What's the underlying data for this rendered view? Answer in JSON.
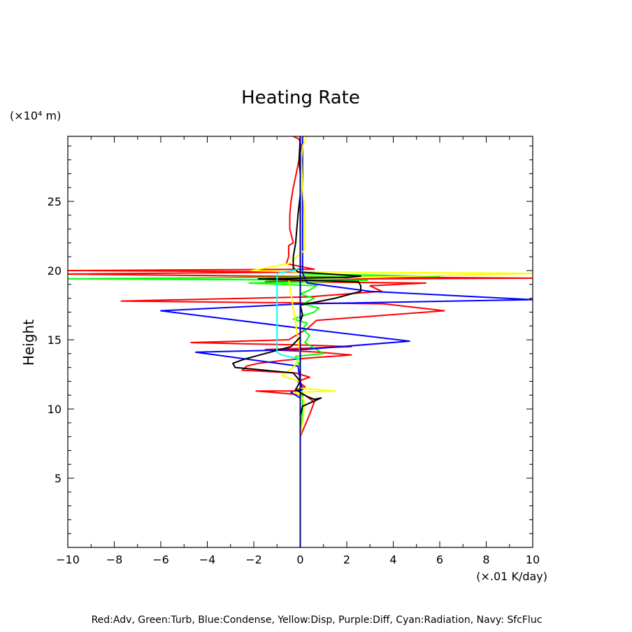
{
  "chart_data": {
    "type": "line",
    "title": "Heating Rate",
    "ylabel": "Height",
    "yunit": "(×10⁴ m)",
    "xunit": "(×.01 K/day)",
    "xlim": [
      -10,
      10
    ],
    "ylim": [
      0,
      29.7
    ],
    "xticks": [
      -10,
      -8,
      -6,
      -4,
      -2,
      0,
      2,
      4,
      6,
      8,
      10
    ],
    "yticks": [
      5,
      10,
      15,
      20,
      25
    ],
    "footer": "Red:Adv, Green:Turb, Blue:Condense, Yellow:Disp, Purple:Diff, Cyan:Radiation, Navy: SfcFluc",
    "series": [
      {
        "name": "Red:Adv",
        "color": "#ff0000",
        "points": [
          [
            0,
            0
          ],
          [
            0,
            8.0
          ],
          [
            0.4,
            9.6
          ],
          [
            0.6,
            10.5
          ],
          [
            0.2,
            11.0
          ],
          [
            -1.9,
            11.3
          ],
          [
            -0.3,
            11.3
          ],
          [
            0.2,
            11.6
          ],
          [
            -0.1,
            12.0
          ],
          [
            0.4,
            12.3
          ],
          [
            -0.2,
            12.6
          ],
          [
            -2.5,
            12.8
          ],
          [
            -2.3,
            13.1
          ],
          [
            -1.8,
            13.3
          ],
          [
            -0.8,
            13.5
          ],
          [
            0.5,
            13.7
          ],
          [
            2.2,
            13.9
          ],
          [
            0.8,
            14.1
          ],
          [
            -1.5,
            14.3
          ],
          [
            2.2,
            14.5
          ],
          [
            0.5,
            14.6
          ],
          [
            -4.7,
            14.8
          ],
          [
            -0.5,
            15.0
          ],
          [
            0.3,
            15.8
          ],
          [
            0.7,
            16.4
          ],
          [
            6.2,
            17.1
          ],
          [
            3.6,
            17.6
          ],
          [
            -7.7,
            17.8
          ],
          [
            0.3,
            18.1
          ],
          [
            3.5,
            18.5
          ],
          [
            3.0,
            18.9
          ],
          [
            5.4,
            19.1
          ],
          [
            -1.5,
            19.2
          ],
          [
            2.7,
            19.4
          ],
          [
            10.0,
            19.45
          ],
          [
            -1.7,
            19.6
          ],
          [
            -10.0,
            19.75
          ],
          [
            0.6,
            19.9
          ],
          [
            -10.0,
            20.0
          ],
          [
            0.6,
            20.1
          ],
          [
            -0.6,
            20.5
          ],
          [
            -0.5,
            21.0
          ],
          [
            -0.5,
            21.8
          ],
          [
            -0.3,
            22.0
          ],
          [
            -0.45,
            23.0
          ],
          [
            -0.45,
            24.0
          ],
          [
            -0.4,
            25.0
          ],
          [
            -0.3,
            26.0
          ],
          [
            -0.05,
            28.0
          ],
          [
            0.05,
            29.0
          ],
          [
            -0.05,
            29.5
          ],
          [
            -0.3,
            29.7
          ]
        ]
      },
      {
        "name": "Green:Turb",
        "color": "#00ff00",
        "points": [
          [
            0,
            8.0
          ],
          [
            0.05,
            9.0
          ],
          [
            0.1,
            10.0
          ],
          [
            0.1,
            11.0
          ],
          [
            0,
            12.0
          ],
          [
            0,
            13.0
          ],
          [
            -0.2,
            13.8
          ],
          [
            1.0,
            14.0
          ],
          [
            0.6,
            14.4
          ],
          [
            0.2,
            14.8
          ],
          [
            0.4,
            15.3
          ],
          [
            0.1,
            15.8
          ],
          [
            0.3,
            16.2
          ],
          [
            -0.3,
            16.5
          ],
          [
            0.6,
            17.0
          ],
          [
            0.8,
            17.3
          ],
          [
            0.1,
            17.6
          ],
          [
            0.6,
            18.0
          ],
          [
            0,
            18.3
          ],
          [
            0.4,
            18.6
          ],
          [
            0.7,
            18.9
          ],
          [
            -2.2,
            19.1
          ],
          [
            0.8,
            19.2
          ],
          [
            2.9,
            19.3
          ],
          [
            -10.0,
            19.4
          ],
          [
            6.0,
            19.6
          ],
          [
            0.2,
            19.75
          ],
          [
            0,
            19.9
          ]
        ]
      },
      {
        "name": "Blue:Condense",
        "color": "#0000ff",
        "points": [
          [
            0,
            0
          ],
          [
            0,
            10.8
          ],
          [
            -0.4,
            11.2
          ],
          [
            0.1,
            11.4
          ],
          [
            0,
            12.0
          ],
          [
            -0.1,
            13.1
          ],
          [
            -4.5,
            14.1
          ],
          [
            0.2,
            14.3
          ],
          [
            4.7,
            14.9
          ],
          [
            0.2,
            15.8
          ],
          [
            -6.0,
            17.1
          ],
          [
            0.1,
            17.6
          ],
          [
            10.0,
            17.9
          ],
          [
            3.0,
            18.5
          ],
          [
            0.3,
            19.1
          ],
          [
            0.1,
            19.8
          ],
          [
            0.1,
            20.3
          ],
          [
            0.1,
            29.7
          ]
        ]
      },
      {
        "name": "Yellow:Disp",
        "color": "#ffff00",
        "points": [
          [
            0,
            8.0
          ],
          [
            0.1,
            9.0
          ],
          [
            0.2,
            10.5
          ],
          [
            0,
            11.0
          ],
          [
            -0.3,
            11.2
          ],
          [
            1.5,
            11.3
          ],
          [
            0,
            11.5
          ],
          [
            0,
            12.0
          ],
          [
            -0.8,
            12.4
          ],
          [
            -0.3,
            13.0
          ],
          [
            -0.1,
            13.5
          ],
          [
            0,
            14.0
          ],
          [
            -0.5,
            19.4
          ],
          [
            10.0,
            19.8
          ],
          [
            0.2,
            19.9
          ],
          [
            -2.1,
            20.0
          ],
          [
            -0.5,
            20.5
          ],
          [
            0.2,
            21.5
          ],
          [
            0.2,
            22.5
          ],
          [
            0.2,
            23.5
          ],
          [
            0.15,
            25.0
          ],
          [
            0.1,
            26.0
          ],
          [
            0.05,
            28.0
          ],
          [
            0.1,
            29.0
          ],
          [
            0.3,
            29.7
          ]
        ]
      },
      {
        "name": "Black",
        "color": "#000000",
        "points": [
          [
            0,
            8.0
          ],
          [
            0,
            9.5
          ],
          [
            0.1,
            10.2
          ],
          [
            0.9,
            10.8
          ],
          [
            0.6,
            10.7
          ],
          [
            0.3,
            10.9
          ],
          [
            -0.2,
            11.4
          ],
          [
            0,
            12.0
          ],
          [
            -0.3,
            12.6
          ],
          [
            -2.8,
            13.0
          ],
          [
            -2.9,
            13.3
          ],
          [
            -2.4,
            13.6
          ],
          [
            -1.3,
            14.1
          ],
          [
            -0.4,
            14.5
          ],
          [
            0,
            15.2
          ],
          [
            0,
            15.8
          ],
          [
            0,
            16.3
          ],
          [
            0.1,
            16.8
          ],
          [
            0,
            17.5
          ],
          [
            1.5,
            18.0
          ],
          [
            2.6,
            18.5
          ],
          [
            2.6,
            18.9
          ],
          [
            2.5,
            19.2
          ],
          [
            -1.8,
            19.4
          ],
          [
            2.0,
            19.5
          ],
          [
            2.6,
            19.6
          ],
          [
            -0.1,
            19.9
          ],
          [
            -0.3,
            20.2
          ],
          [
            -0.3,
            21.0
          ],
          [
            -0.2,
            22.0
          ],
          [
            -0.1,
            24.0
          ],
          [
            0,
            25.5
          ],
          [
            0,
            27.0
          ],
          [
            -0.05,
            28.0
          ],
          [
            0,
            29.7
          ]
        ]
      },
      {
        "name": "Cyan:Radiation",
        "color": "#00ffff",
        "points": [
          [
            0,
            11.4
          ],
          [
            0,
            12.0
          ],
          [
            0,
            13.6
          ],
          [
            -0.8,
            13.9
          ],
          [
            -1.0,
            14.1
          ],
          [
            -1.0,
            19.8
          ],
          [
            -0.3,
            20.0
          ],
          [
            0,
            20.2
          ]
        ]
      },
      {
        "name": "Navy: SfcFluc",
        "color": "#000080",
        "points": [
          [
            0,
            0
          ],
          [
            0,
            29.7
          ]
        ]
      }
    ]
  }
}
